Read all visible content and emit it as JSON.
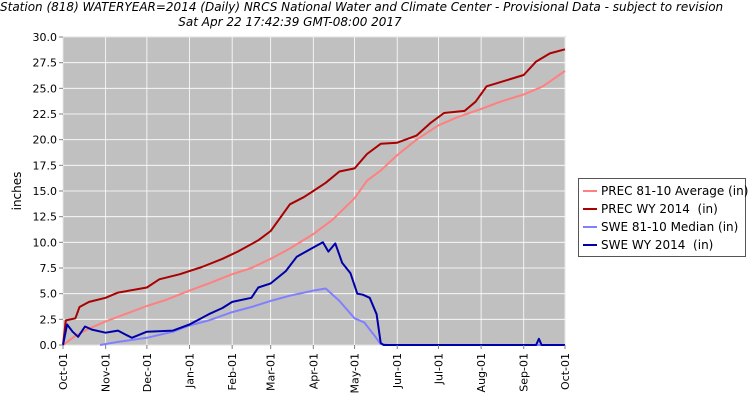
{
  "title": {
    "line1": "Station (818) WATERYEAR=2014 (Daily) NRCS National Water and Climate Center - Provisional Data - subject to revision",
    "line2": "Sat Apr 22 17:42:39 GMT-08:00 2017"
  },
  "colors": {
    "plot_background": "#c0c0c0",
    "grid": "#ffffff",
    "prec_average": "#ff8080",
    "prec_wy": "#aa0000",
    "swe_median": "#8080ff",
    "swe_wy": "#0000aa"
  },
  "legend": [
    {
      "label": "PREC 81-10 Average (in)",
      "color": "#ff8080"
    },
    {
      "label": "PREC WY 2014  (in)",
      "color": "#aa0000"
    },
    {
      "label": "SWE 81-10 Median (in)",
      "color": "#8080ff"
    },
    {
      "label": "SWE WY 2014  (in)",
      "color": "#0000aa"
    }
  ],
  "chart_data": {
    "type": "line",
    "title": "Station (818) WATERYEAR=2014 (Daily) NRCS National Water and Climate Center - Provisional Data - subject to revision",
    "subtitle": "Sat Apr 22 17:42:39 GMT-08:00 2017",
    "xlabel": "",
    "ylabel": "inches",
    "ylim": [
      0,
      30
    ],
    "yticks": [
      "0.0",
      "2.5",
      "5.0",
      "7.5",
      "10.0",
      "12.5",
      "15.0",
      "17.5",
      "20.0",
      "22.5",
      "25.0",
      "27.5",
      "30.0"
    ],
    "xticks": [
      "Oct-01",
      "Nov-01",
      "Dec-01",
      "Jan-01",
      "Feb-01",
      "Mar-01",
      "Apr-01",
      "May-01",
      "Jun-01",
      "Jul-01",
      "Aug-01",
      "Sep-01",
      "Oct-01"
    ],
    "xrange": [
      "2013-10-01",
      "2014-10-01"
    ],
    "grid": true,
    "legend_position": "right",
    "series": [
      {
        "name": "PREC 81-10 Average (in)",
        "color": "#ff8080",
        "points": [
          [
            "2013-10-01",
            0.0
          ],
          [
            "2013-10-10",
            0.9
          ],
          [
            "2013-10-20",
            1.6
          ],
          [
            "2013-11-01",
            2.3
          ],
          [
            "2013-11-15",
            3.0
          ],
          [
            "2013-12-01",
            3.8
          ],
          [
            "2013-12-15",
            4.4
          ],
          [
            "2014-01-01",
            5.3
          ],
          [
            "2014-01-15",
            6.0
          ],
          [
            "2014-02-01",
            6.9
          ],
          [
            "2014-02-15",
            7.5
          ],
          [
            "2014-03-01",
            8.4
          ],
          [
            "2014-03-15",
            9.4
          ],
          [
            "2014-04-01",
            10.8
          ],
          [
            "2014-04-15",
            12.2
          ],
          [
            "2014-05-01",
            14.3
          ],
          [
            "2014-05-10",
            16.0
          ],
          [
            "2014-05-20",
            17.0
          ],
          [
            "2014-06-01",
            18.5
          ],
          [
            "2014-06-15",
            20.0
          ],
          [
            "2014-07-01",
            21.4
          ],
          [
            "2014-07-15",
            22.2
          ],
          [
            "2014-08-01",
            23.0
          ],
          [
            "2014-08-15",
            23.7
          ],
          [
            "2014-09-01",
            24.4
          ],
          [
            "2014-09-15",
            25.2
          ],
          [
            "2014-10-01",
            26.7
          ]
        ]
      },
      {
        "name": "PREC WY 2014  (in)",
        "color": "#aa0000",
        "points": [
          [
            "2013-10-01",
            0.0
          ],
          [
            "2013-10-03",
            2.4
          ],
          [
            "2013-10-10",
            2.6
          ],
          [
            "2013-10-13",
            3.7
          ],
          [
            "2013-10-20",
            4.2
          ],
          [
            "2013-11-01",
            4.6
          ],
          [
            "2013-11-10",
            5.1
          ],
          [
            "2013-12-01",
            5.6
          ],
          [
            "2013-12-10",
            6.4
          ],
          [
            "2013-12-25",
            6.9
          ],
          [
            "2014-01-10",
            7.6
          ],
          [
            "2014-01-25",
            8.4
          ],
          [
            "2014-02-05",
            9.1
          ],
          [
            "2014-02-20",
            10.2
          ],
          [
            "2014-03-01",
            11.1
          ],
          [
            "2014-03-15",
            13.7
          ],
          [
            "2014-03-25",
            14.4
          ],
          [
            "2014-04-01",
            15.0
          ],
          [
            "2014-04-10",
            15.8
          ],
          [
            "2014-04-20",
            16.9
          ],
          [
            "2014-05-01",
            17.2
          ],
          [
            "2014-05-10",
            18.6
          ],
          [
            "2014-05-20",
            19.6
          ],
          [
            "2014-06-01",
            19.7
          ],
          [
            "2014-06-15",
            20.4
          ],
          [
            "2014-06-25",
            21.6
          ],
          [
            "2014-07-05",
            22.6
          ],
          [
            "2014-07-20",
            22.8
          ],
          [
            "2014-07-28",
            23.7
          ],
          [
            "2014-08-05",
            25.2
          ],
          [
            "2014-08-20",
            25.8
          ],
          [
            "2014-09-01",
            26.3
          ],
          [
            "2014-09-10",
            27.6
          ],
          [
            "2014-09-20",
            28.4
          ],
          [
            "2014-10-01",
            28.8
          ]
        ]
      },
      {
        "name": "SWE 81-10 Median (in)",
        "color": "#8080ff",
        "points": [
          [
            "2013-10-28",
            0.0
          ],
          [
            "2013-11-10",
            0.3
          ],
          [
            "2013-12-01",
            0.7
          ],
          [
            "2013-12-20",
            1.3
          ],
          [
            "2014-01-01",
            1.9
          ],
          [
            "2014-01-15",
            2.4
          ],
          [
            "2014-02-01",
            3.2
          ],
          [
            "2014-02-15",
            3.7
          ],
          [
            "2014-03-01",
            4.3
          ],
          [
            "2014-03-15",
            4.8
          ],
          [
            "2014-04-01",
            5.3
          ],
          [
            "2014-04-10",
            5.5
          ],
          [
            "2014-04-20",
            4.3
          ],
          [
            "2014-05-01",
            2.6
          ],
          [
            "2014-05-08",
            2.2
          ],
          [
            "2014-05-15",
            1.0
          ],
          [
            "2014-05-20",
            0.1
          ],
          [
            "2014-05-25",
            0.0
          ],
          [
            "2014-10-01",
            0.0
          ]
        ]
      },
      {
        "name": "SWE WY 2014  (in)",
        "color": "#0000aa",
        "points": [
          [
            "2013-10-01",
            0.0
          ],
          [
            "2013-10-04",
            2.0
          ],
          [
            "2013-10-08",
            1.3
          ],
          [
            "2013-10-12",
            0.8
          ],
          [
            "2013-10-17",
            1.8
          ],
          [
            "2013-10-22",
            1.5
          ],
          [
            "2013-11-01",
            1.2
          ],
          [
            "2013-11-10",
            1.4
          ],
          [
            "2013-11-20",
            0.7
          ],
          [
            "2013-12-01",
            1.3
          ],
          [
            "2013-12-20",
            1.4
          ],
          [
            "2014-01-01",
            2.0
          ],
          [
            "2014-01-15",
            3.0
          ],
          [
            "2014-01-25",
            3.6
          ],
          [
            "2014-02-01",
            4.2
          ],
          [
            "2014-02-15",
            4.6
          ],
          [
            "2014-02-20",
            5.6
          ],
          [
            "2014-03-01",
            6.0
          ],
          [
            "2014-03-12",
            7.2
          ],
          [
            "2014-03-20",
            8.6
          ],
          [
            "2014-04-01",
            9.5
          ],
          [
            "2014-04-08",
            10.0
          ],
          [
            "2014-04-12",
            9.1
          ],
          [
            "2014-04-17",
            9.9
          ],
          [
            "2014-04-22",
            8.0
          ],
          [
            "2014-04-28",
            7.0
          ],
          [
            "2014-05-03",
            5.0
          ],
          [
            "2014-05-07",
            4.9
          ],
          [
            "2014-05-12",
            4.6
          ],
          [
            "2014-05-17",
            3.0
          ],
          [
            "2014-05-20",
            0.2
          ],
          [
            "2014-05-22",
            0.0
          ],
          [
            "2014-09-10",
            0.0
          ],
          [
            "2014-09-12",
            0.6
          ],
          [
            "2014-09-14",
            0.0
          ],
          [
            "2014-10-01",
            0.0
          ]
        ]
      }
    ]
  }
}
